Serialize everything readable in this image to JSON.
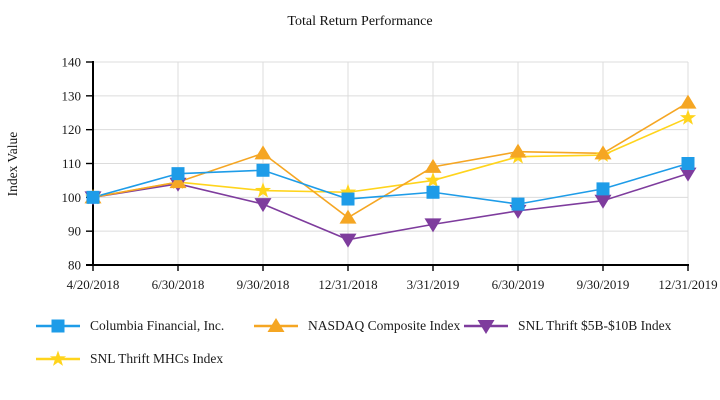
{
  "chart_data": {
    "type": "line",
    "title": "Total Return Performance",
    "xlabel": "",
    "ylabel": "Index Value",
    "ylim": [
      80,
      140
    ],
    "ytick_step": 10,
    "grid": true,
    "legend_position": "bottom-left",
    "categories": [
      "4/20/2018",
      "6/30/2018",
      "9/30/2018",
      "12/31/2018",
      "3/31/2019",
      "6/30/2019",
      "9/30/2019",
      "12/31/2019"
    ],
    "series": [
      {
        "name": "Columbia Financial, Inc.",
        "marker": "square",
        "icon": "square-marker-icon",
        "color": "#1E9CE8",
        "values": [
          100,
          107,
          108,
          99.5,
          101.5,
          98,
          102.5,
          110
        ]
      },
      {
        "name": "NASDAQ Composite Index",
        "marker": "triangle-up",
        "icon": "triangle-up-marker-icon",
        "color": "#F5A623",
        "values": [
          100,
          104.5,
          113,
          94,
          109,
          113.5,
          113,
          128
        ]
      },
      {
        "name": "SNL Thrift $5B-$10B Index",
        "marker": "triangle-down",
        "icon": "triangle-down-marker-icon",
        "color": "#7E3C9D",
        "values": [
          100,
          104,
          98,
          87.5,
          92,
          96,
          99,
          107
        ]
      },
      {
        "name": "SNL Thrift MHCs Index",
        "marker": "star",
        "icon": "star-marker-icon",
        "color": "#FFD41C",
        "values": [
          100,
          104.5,
          102,
          101.5,
          105,
          112,
          112.5,
          123.5
        ]
      }
    ],
    "axis_color": "#000000",
    "grid_color": "#DCDCDC",
    "text_color": "#1a1a1a"
  }
}
